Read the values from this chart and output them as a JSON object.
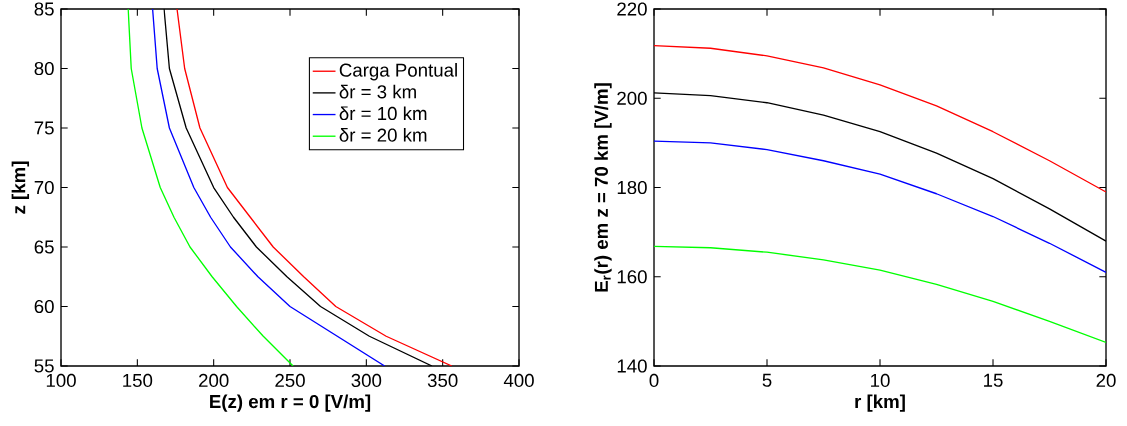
{
  "chart_data": [
    {
      "type": "line",
      "xlabel": "E(z) em r = 0 [V/m]",
      "ylabel": "z [km]",
      "xlim": [
        100,
        400
      ],
      "ylim": [
        55,
        85
      ],
      "xticks": [
        100,
        150,
        200,
        250,
        300,
        350,
        400
      ],
      "yticks": [
        55,
        60,
        65,
        70,
        75,
        80,
        85
      ],
      "legend": "top right",
      "series": [
        {
          "name": "Carga Pontual",
          "color": "#ff0000",
          "x": [
            356,
            313,
            280,
            259,
            239,
            224,
            209,
            191,
            181,
            176
          ],
          "values": [
            55,
            57.5,
            60,
            62.5,
            65,
            67.5,
            70,
            75,
            80,
            85
          ]
        },
        {
          "name": "δr = 3 km",
          "color": "#000000",
          "x": [
            343,
            302,
            270,
            248,
            228,
            213,
            200,
            182,
            171,
            167.5
          ],
          "values": [
            55,
            57.5,
            60,
            62.5,
            65,
            67.5,
            70,
            75,
            80,
            85
          ]
        },
        {
          "name": "δr = 10 km",
          "color": "#0000ff",
          "x": [
            312,
            281,
            250,
            229,
            211,
            198,
            187,
            171,
            163,
            160
          ],
          "values": [
            55,
            57.5,
            60,
            62.5,
            65,
            67.5,
            70,
            75,
            80,
            85
          ]
        },
        {
          "name": "δr = 20 km",
          "color": "#00ff00",
          "x": [
            252,
            232.5,
            215,
            199,
            184.5,
            174,
            165,
            153,
            146,
            144
          ],
          "values": [
            55,
            57.5,
            60,
            62.5,
            65,
            67.5,
            70,
            75,
            80,
            85
          ]
        }
      ]
    },
    {
      "type": "line",
      "xlabel": "r [km]",
      "ylabel": "E$_{r}$(r) em z = 70 km [V/m]",
      "xlim": [
        0,
        20
      ],
      "ylim": [
        140,
        220
      ],
      "xticks": [
        0,
        5,
        10,
        15,
        20
      ],
      "yticks": [
        140,
        160,
        180,
        200,
        220
      ],
      "x": [
        0,
        2.5,
        5,
        7.5,
        10,
        12.5,
        15,
        17.5,
        20
      ],
      "series": [
        {
          "color": "#ff0000",
          "values": [
            211.8,
            211.2,
            209.5,
            206.8,
            203,
            198.3,
            192.5,
            186,
            179
          ]
        },
        {
          "color": "#000000",
          "values": [
            201.2,
            200.6,
            199,
            196.2,
            192.5,
            187.7,
            182,
            175.2,
            168
          ]
        },
        {
          "color": "#0000ff",
          "values": [
            190.4,
            190,
            188.5,
            186,
            183,
            178.6,
            173.5,
            167.5,
            161
          ]
        },
        {
          "color": "#00ff00",
          "values": [
            166.8,
            166.5,
            165.5,
            163.8,
            161.5,
            158.3,
            154.5,
            150,
            145.3
          ]
        }
      ]
    }
  ]
}
